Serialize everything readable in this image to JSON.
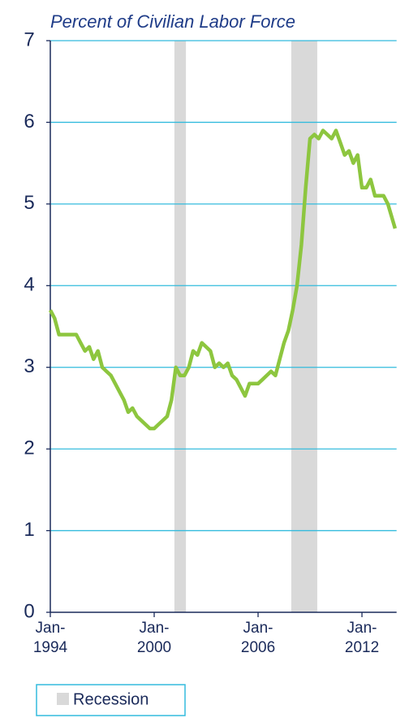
{
  "chart_data": {
    "type": "line",
    "title": "Percent of Civilian Labor Force",
    "x": [
      "1994-01",
      "1994-04",
      "1994-07",
      "1994-10",
      "1995-01",
      "1995-04",
      "1995-07",
      "1995-10",
      "1996-01",
      "1996-04",
      "1996-07",
      "1996-10",
      "1997-01",
      "1997-04",
      "1997-07",
      "1997-10",
      "1998-01",
      "1998-04",
      "1998-07",
      "1998-10",
      "1999-01",
      "1999-04",
      "1999-07",
      "1999-10",
      "2000-01",
      "2000-04",
      "2000-07",
      "2000-10",
      "2001-01",
      "2001-04",
      "2001-07",
      "2001-10",
      "2002-01",
      "2002-04",
      "2002-07",
      "2002-10",
      "2003-01",
      "2003-04",
      "2003-07",
      "2003-10",
      "2004-01",
      "2004-04",
      "2004-07",
      "2004-10",
      "2005-01",
      "2005-04",
      "2005-07",
      "2005-10",
      "2006-01",
      "2006-04",
      "2006-07",
      "2006-10",
      "2007-01",
      "2007-04",
      "2007-07",
      "2007-10",
      "2008-01",
      "2008-04",
      "2008-07",
      "2008-10",
      "2009-01",
      "2009-04",
      "2009-07",
      "2009-10",
      "2010-01",
      "2010-04",
      "2010-07",
      "2010-10",
      "2011-01",
      "2011-04",
      "2011-07",
      "2011-10",
      "2012-01",
      "2012-04",
      "2012-07",
      "2012-10",
      "2013-01",
      "2013-04",
      "2013-07",
      "2013-12"
    ],
    "series": [
      {
        "name": "Percent of Civilian Labor Force",
        "color": "#8dc63f",
        "values": [
          3.7,
          3.6,
          3.4,
          3.4,
          3.4,
          3.4,
          3.4,
          3.3,
          3.2,
          3.25,
          3.1,
          3.2,
          3.0,
          2.95,
          2.9,
          2.8,
          2.7,
          2.6,
          2.45,
          2.5,
          2.4,
          2.35,
          2.3,
          2.25,
          2.25,
          2.3,
          2.35,
          2.4,
          2.6,
          3.0,
          2.9,
          2.9,
          3.0,
          3.2,
          3.15,
          3.3,
          3.25,
          3.2,
          3.0,
          3.05,
          3.0,
          3.05,
          2.9,
          2.85,
          2.75,
          2.65,
          2.8,
          2.8,
          2.8,
          2.85,
          2.9,
          2.95,
          2.9,
          3.1,
          3.3,
          3.45,
          3.7,
          4.0,
          4.5,
          5.2,
          5.8,
          5.85,
          5.8,
          5.9,
          5.85,
          5.8,
          5.9,
          5.75,
          5.6,
          5.65,
          5.5,
          5.6,
          5.2,
          5.2,
          5.3,
          5.1,
          5.1,
          5.1,
          5.0,
          4.7
        ]
      }
    ],
    "xlim": [
      "1994-01",
      "2014-01"
    ],
    "xticks": [
      {
        "value": "1994-01",
        "label": "Jan-1994"
      },
      {
        "value": "2000-01",
        "label": "Jan-2000"
      },
      {
        "value": "2006-01",
        "label": "Jan-2006"
      },
      {
        "value": "2012-01",
        "label": "Jan-2012"
      }
    ],
    "ylim": [
      0,
      7
    ],
    "yticks": [
      0,
      1,
      2,
      3,
      4,
      5,
      6,
      7
    ],
    "grid": true,
    "recessions": [
      {
        "start": "2001-03",
        "end": "2001-11"
      },
      {
        "start": "2007-12",
        "end": "2009-06"
      }
    ],
    "recession_color": "#d9d9d9",
    "legend": "Recession"
  }
}
